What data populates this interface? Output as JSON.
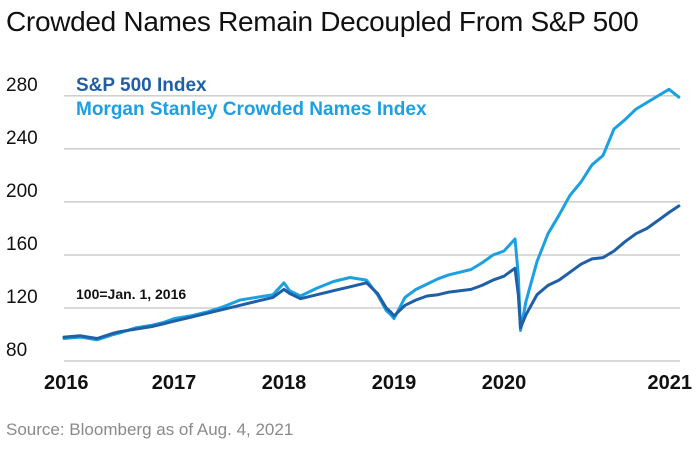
{
  "title": "Crowded Names Remain Decoupled From S&P 500",
  "source": "Source: Bloomberg as of Aug. 4, 2021",
  "chart_data": {
    "type": "line",
    "title": "Crowded Names Remain Decoupled From S&P 500",
    "xlabel": "",
    "ylabel": "",
    "xlim": [
      2016,
      2021.6
    ],
    "ylim": [
      80,
      295
    ],
    "x_ticks": [
      "2016",
      "2017",
      "2018",
      "2019",
      "2020",
      "2021"
    ],
    "y_ticks": [
      80,
      120,
      160,
      200,
      240,
      280
    ],
    "grid": "horizontal",
    "annotation": "100=Jan. 1, 2016",
    "x": [
      2016.0,
      2016.15,
      2016.3,
      2016.45,
      2016.5,
      2016.65,
      2016.8,
      2016.9,
      2017.0,
      2017.15,
      2017.3,
      2017.45,
      2017.6,
      2017.75,
      2017.9,
      2018.0,
      2018.05,
      2018.15,
      2018.3,
      2018.45,
      2018.6,
      2018.75,
      2018.85,
      2018.93,
      2018.97,
      2019.0,
      2019.1,
      2019.2,
      2019.3,
      2019.4,
      2019.5,
      2019.6,
      2019.7,
      2019.8,
      2019.9,
      2020.0,
      2020.1,
      2020.13,
      2020.15,
      2020.2,
      2020.3,
      2020.4,
      2020.5,
      2020.6,
      2020.7,
      2020.8,
      2020.9,
      2021.0,
      2021.1,
      2021.2,
      2021.3,
      2021.4,
      2021.5,
      2021.59
    ],
    "series": [
      {
        "name": "S&P 500 Index",
        "color": "#1f5fa8",
        "values": [
          98,
          99,
          97,
          101,
          102,
          104,
          106,
          108,
          110,
          113,
          116,
          119,
          122,
          125,
          128,
          134,
          131,
          127,
          130,
          133,
          136,
          139,
          131,
          120,
          117,
          114,
          122,
          126,
          129,
          130,
          132,
          133,
          134,
          137,
          141,
          144,
          150,
          130,
          105,
          115,
          130,
          137,
          141,
          147,
          153,
          157,
          158,
          163,
          170,
          176,
          180,
          186,
          192,
          197
        ]
      },
      {
        "name": "Morgan Stanley Crowded Names Index",
        "color": "#1ba0e2",
        "values": [
          97,
          98,
          96,
          100,
          101,
          105,
          107,
          109,
          112,
          114,
          117,
          121,
          126,
          128,
          130,
          139,
          133,
          129,
          135,
          140,
          143,
          141,
          130,
          118,
          115,
          112,
          128,
          134,
          138,
          142,
          145,
          147,
          149,
          154,
          160,
          163,
          172,
          145,
          103,
          125,
          155,
          176,
          190,
          205,
          215,
          228,
          235,
          255,
          262,
          270,
          275,
          280,
          285,
          279
        ]
      }
    ]
  }
}
